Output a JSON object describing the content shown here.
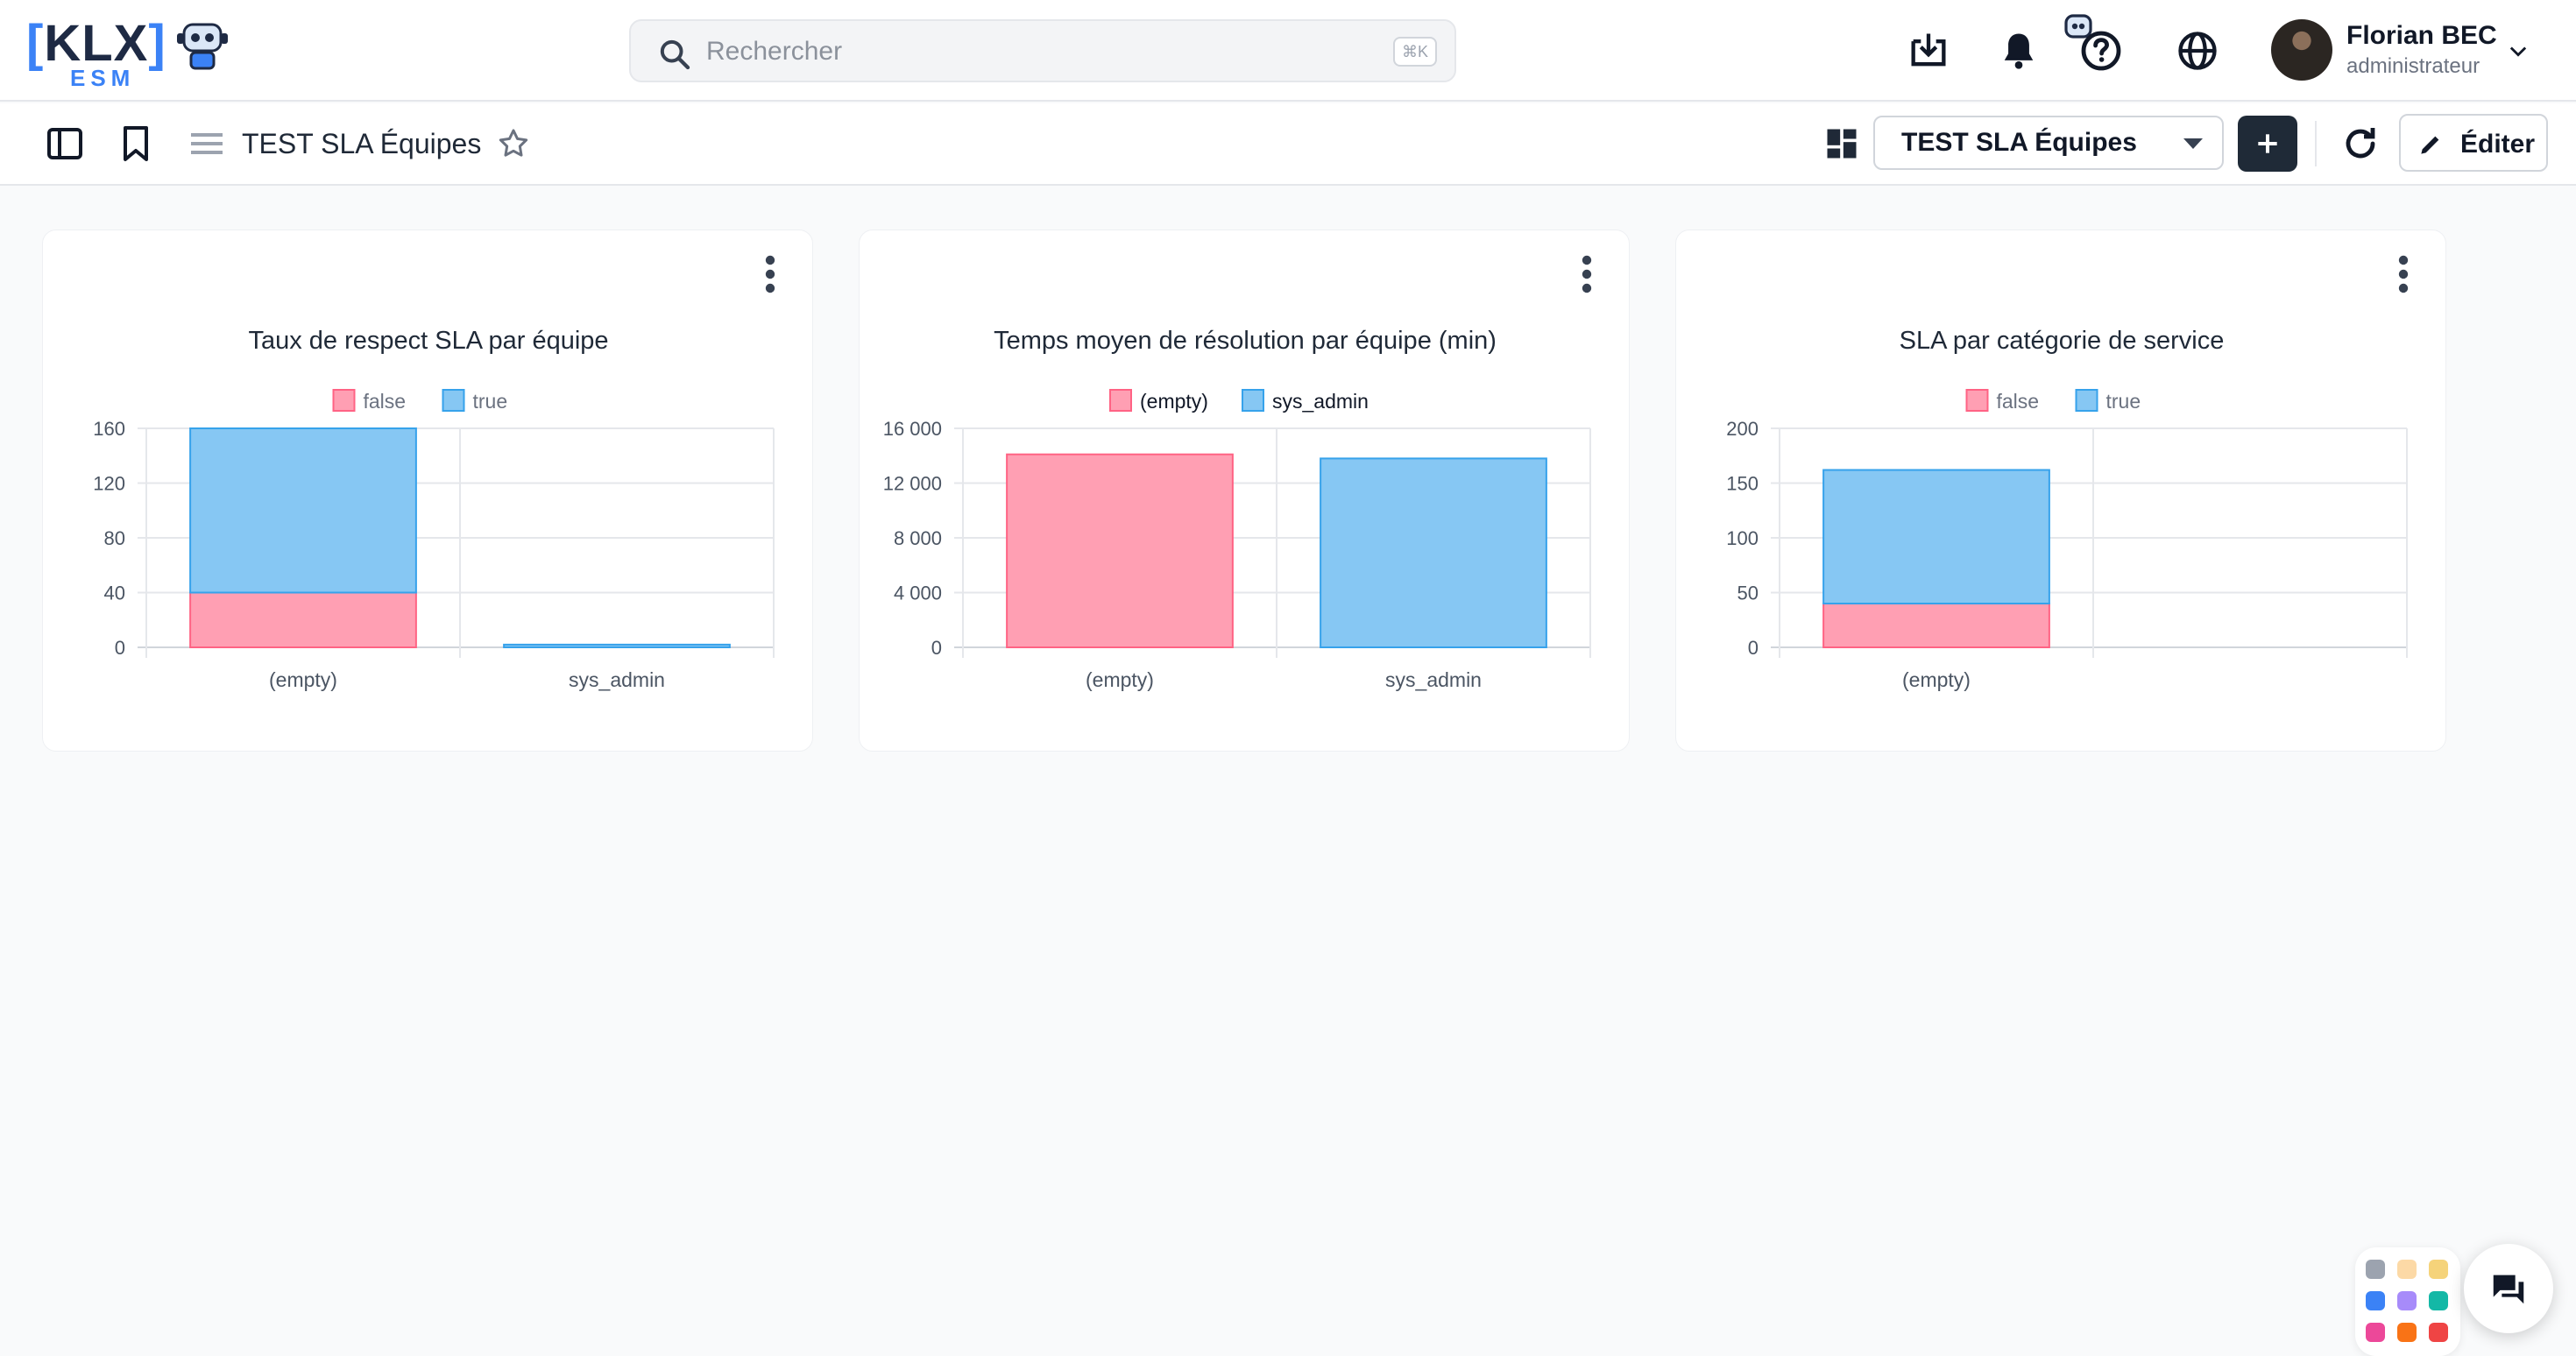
{
  "header": {
    "logo": {
      "text": "KLX",
      "sub": "ESM"
    },
    "search": {
      "placeholder": "Rechercher",
      "shortcut": "⌘K"
    },
    "icons": [
      "download-icon",
      "bell-icon",
      "robot-help-icon",
      "globe-icon"
    ],
    "user": {
      "name": "Florian BEC",
      "role": "administrateur"
    }
  },
  "toolbar": {
    "title": "TEST SLA Équipes",
    "dashboard_select": "TEST SLA Équipes",
    "edit_label": "Éditer"
  },
  "colors": {
    "pink": "#ff9fb3",
    "pink_border": "#ff6384",
    "blue": "#86c7f3",
    "blue_border": "#36a2eb"
  },
  "chart_data": [
    {
      "type": "bar",
      "stacked": true,
      "title": "Taux de respect SLA par équipe",
      "categories": [
        "(empty)",
        "sys_admin"
      ],
      "series": [
        {
          "name": "false",
          "values": [
            40,
            0
          ]
        },
        {
          "name": "true",
          "values": [
            120,
            2
          ]
        }
      ],
      "yticks": [
        "0",
        "40",
        "80",
        "120",
        "160"
      ],
      "ylim": [
        0,
        160
      ],
      "legend": "top",
      "grid": true
    },
    {
      "type": "bar",
      "stacked": false,
      "title": "Temps moyen de résolution par équipe (min)",
      "categories": [
        "(empty)",
        "sys_admin"
      ],
      "series": [
        {
          "name": "(empty)",
          "values": [
            14100,
            null
          ]
        },
        {
          "name": "sys_admin",
          "values": [
            null,
            13800
          ]
        }
      ],
      "yticks": [
        "0",
        "4 000",
        "8 000",
        "12 000",
        "16 000"
      ],
      "ylim": [
        0,
        16000
      ],
      "legend": "top",
      "grid": true
    },
    {
      "type": "bar",
      "stacked": true,
      "title": "SLA par catégorie de service",
      "categories": [
        "(empty)",
        ""
      ],
      "series": [
        {
          "name": "false",
          "values": [
            40,
            0
          ]
        },
        {
          "name": "true",
          "values": [
            122,
            0
          ]
        }
      ],
      "yticks": [
        "0",
        "50",
        "100",
        "150",
        "200"
      ],
      "ylim": [
        0,
        200
      ],
      "legend": "top",
      "grid": true
    }
  ]
}
